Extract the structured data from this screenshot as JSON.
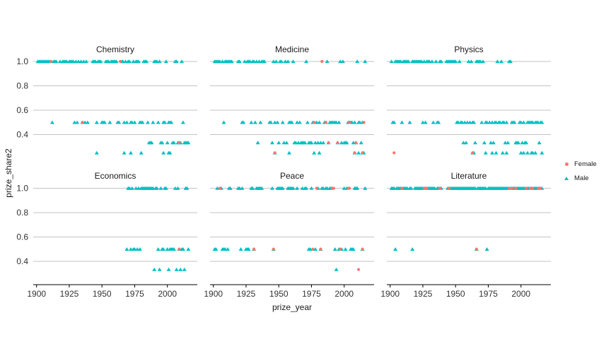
{
  "chart_data": {
    "type": "scatter",
    "faceted": true,
    "xlabel": "prize_year",
    "ylabel": "prize_share2",
    "x_ticks": [
      1900,
      1925,
      1950,
      1975,
      2000
    ],
    "x_tick_labels": [
      "1900",
      "1925",
      "1950",
      "1975",
      "2000"
    ],
    "y_ticks": [
      1.0,
      0.8,
      0.6,
      0.4
    ],
    "y_tick_labels": [
      "1.0",
      "0.8",
      "0.6",
      "0.4"
    ],
    "x_range": [
      1895,
      2022
    ],
    "share_levels": [
      1,
      0.5,
      0.333,
      0.25
    ],
    "grid": "horizontal-only",
    "legend_position": "right",
    "series": [
      {
        "name": "Female",
        "color": "#F8766D",
        "shape": "circle"
      },
      {
        "name": "Male",
        "color": "#00BFC4",
        "shape": "triangle"
      }
    ],
    "colors": {
      "gridline": "#C3C3C3",
      "axis": "#000000",
      "tick_text": "#333333"
    },
    "facets": [
      {
        "category": "Chemistry",
        "female": [
          [
            1911,
            1
          ],
          [
            1935,
            0.5
          ],
          [
            1964,
            1
          ],
          [
            2009,
            0.333
          ]
        ],
        "male": {
          "1": [
            1901,
            1902,
            1903,
            1904,
            1905,
            1906,
            1907,
            1908,
            1909,
            1910,
            1913,
            1914,
            1915,
            1918,
            1920,
            1921,
            1922,
            1923,
            1925,
            1926,
            1927,
            1928,
            1930,
            1932,
            1934,
            1936,
            1938,
            1943,
            1944,
            1945,
            1947,
            1948,
            1949,
            1953,
            1954,
            1955,
            1957,
            1958,
            1959,
            1960,
            1961,
            1965,
            1966,
            1968,
            1970,
            1971,
            1974,
            1976,
            1977,
            1978,
            1982,
            1983,
            1984,
            1990,
            1991,
            1992,
            1994,
            1999,
            2006,
            2007,
            2011
          ],
          "0.5": [
            1912,
            1929,
            1931,
            1935,
            1937,
            1939,
            1946,
            1950,
            1951,
            1952,
            1956,
            1962,
            1963,
            1967,
            1969,
            1972,
            1973,
            1975,
            1979,
            1980,
            1981,
            1985,
            1989,
            1993,
            1997,
            1998,
            2001,
            2002,
            2003,
            2012
          ],
          "0.333": [
            1986,
            1987,
            1988,
            1995,
            1996,
            2000,
            2004,
            2005,
            2008,
            2009,
            2010,
            2013,
            2014,
            2015,
            2016
          ],
          "0.25": [
            1946,
            1967,
            1972,
            1980,
            1997,
            2001,
            2002
          ]
        }
      },
      {
        "category": "Medicine",
        "female": [
          [
            1947,
            0.25
          ],
          [
            1977,
            0.5
          ],
          [
            1983,
            1
          ],
          [
            1986,
            0.5
          ],
          [
            1988,
            0.333
          ],
          [
            1995,
            0.333
          ],
          [
            2004,
            0.5
          ],
          [
            2008,
            0.25
          ],
          [
            2009,
            0.333
          ],
          [
            2014,
            0.25
          ],
          [
            2015,
            0.5
          ]
        ],
        "male": {
          "1": [
            1901,
            1902,
            1903,
            1904,
            1905,
            1907,
            1909,
            1910,
            1911,
            1912,
            1913,
            1914,
            1919,
            1920,
            1924,
            1926,
            1927,
            1928,
            1930,
            1931,
            1933,
            1935,
            1937,
            1938,
            1939,
            1946,
            1948,
            1951,
            1952,
            1955,
            1957,
            1961,
            1971,
            1987,
            1997,
            1999,
            2010,
            2016
          ],
          "0.5": [
            1908,
            1922,
            1923,
            1929,
            1932,
            1936,
            1943,
            1944,
            1947,
            1949,
            1953,
            1958,
            1959,
            1960,
            1964,
            1966,
            1972,
            1976,
            1979,
            1981,
            1985,
            1986,
            1989,
            1990,
            1991,
            1992,
            1993,
            1994,
            1996,
            2003,
            2004,
            2005,
            2006,
            2008,
            2011,
            2012,
            2014
          ],
          "0.333": [
            1934,
            1945,
            1950,
            1954,
            1956,
            1962,
            1963,
            1965,
            1967,
            1968,
            1969,
            1970,
            1973,
            1974,
            1975,
            1978,
            1980,
            1982,
            1984,
            1988,
            1995,
            1998,
            2000,
            2001,
            2002,
            2007,
            2009,
            2013
          ],
          "0.25": [
            1947,
            1958,
            1977,
            1981,
            2008,
            2011,
            2014,
            2015
          ]
        }
      },
      {
        "category": "Physics",
        "female": [
          [
            1903,
            0.25
          ],
          [
            1963,
            0.25
          ]
        ],
        "male": {
          "1": [
            1901,
            1904,
            1905,
            1906,
            1907,
            1908,
            1910,
            1911,
            1912,
            1913,
            1914,
            1917,
            1918,
            1919,
            1920,
            1921,
            1922,
            1923,
            1924,
            1926,
            1928,
            1929,
            1930,
            1932,
            1935,
            1938,
            1939,
            1943,
            1944,
            1945,
            1946,
            1947,
            1948,
            1949,
            1950,
            1953,
            1960,
            1962,
            1966,
            1967,
            1968,
            1969,
            1971,
            1982,
            1985,
            1991,
            1992
          ],
          "0.5": [
            1902,
            1903,
            1909,
            1915,
            1925,
            1927,
            1933,
            1936,
            1937,
            1951,
            1952,
            1954,
            1955,
            1957,
            1959,
            1961,
            1963,
            1964,
            1970,
            1973,
            1974,
            1976,
            1978,
            1980,
            1981,
            1983,
            1984,
            1986,
            1987,
            1989,
            1993,
            1994,
            1995,
            1999,
            2000,
            2002,
            2005,
            2006,
            2007,
            2008,
            2009,
            2011,
            2012,
            2013,
            2015,
            2016
          ],
          "0.333": [
            1956,
            1958,
            1965,
            1972,
            1977,
            1979,
            1988,
            1990,
            1996,
            1997,
            1998,
            2001,
            2003,
            2004,
            2014
          ],
          "0.25": [
            1963,
            1964,
            1973,
            1978,
            1981,
            1986,
            1989,
            2000,
            2002,
            2005,
            2008,
            2009,
            2011,
            2016
          ]
        }
      },
      {
        "category": "Economics",
        "female": [
          [
            2009,
            0.5
          ]
        ],
        "male": {
          "1": [
            1970,
            1971,
            1973,
            1976,
            1978,
            1980,
            1981,
            1982,
            1983,
            1984,
            1985,
            1986,
            1987,
            1988,
            1989,
            1991,
            1992,
            1995,
            1998,
            1999,
            2006,
            2008,
            2014,
            2015
          ],
          "0.5": [
            1969,
            1972,
            1974,
            1975,
            1977,
            1979,
            1993,
            1996,
            1997,
            2000,
            2002,
            2003,
            2004,
            2005,
            2009,
            2011,
            2012,
            2016
          ],
          "0.333": [
            1990,
            1994,
            2001,
            2007,
            2010,
            2013
          ],
          "0.25": []
        }
      },
      {
        "category": "Peace",
        "female": [
          [
            1905,
            1
          ],
          [
            1931,
            0.5
          ],
          [
            1946,
            0.5
          ],
          [
            1976,
            0.5
          ],
          [
            1979,
            1
          ],
          [
            1982,
            0.5
          ],
          [
            1991,
            1
          ],
          [
            1992,
            1
          ],
          [
            1997,
            0.5
          ],
          [
            2003,
            1
          ],
          [
            2004,
            1
          ],
          [
            2011,
            0.333
          ],
          [
            2014,
            0.5
          ]
        ],
        "male": {
          "1": [
            1903,
            1906,
            1912,
            1913,
            1919,
            1920,
            1922,
            1929,
            1930,
            1933,
            1934,
            1935,
            1936,
            1937,
            1945,
            1949,
            1950,
            1951,
            1952,
            1953,
            1957,
            1958,
            1959,
            1960,
            1961,
            1964,
            1968,
            1970,
            1971,
            1975,
            1980,
            1983,
            1984,
            1986,
            1987,
            1989,
            1990,
            2000,
            2002,
            2008,
            2009,
            2010,
            2016
          ],
          "0.5": [
            1901,
            1902,
            1907,
            1908,
            1909,
            1911,
            1921,
            1925,
            1926,
            1927,
            1931,
            1946,
            1973,
            1974,
            1978,
            1982,
            1993,
            1996,
            1998,
            2001,
            2005,
            2006,
            2007,
            2014
          ],
          "0.333": [
            1994
          ],
          "0.25": []
        }
      },
      {
        "category": "Literature",
        "female": [
          [
            1909,
            1
          ],
          [
            1926,
            1
          ],
          [
            1928,
            1
          ],
          [
            1938,
            1
          ],
          [
            1945,
            1
          ],
          [
            1966,
            0.5
          ],
          [
            1991,
            1
          ],
          [
            1993,
            1
          ],
          [
            1996,
            1
          ],
          [
            2004,
            1
          ],
          [
            2007,
            1
          ],
          [
            2009,
            1
          ],
          [
            2013,
            1
          ],
          [
            2015,
            1
          ]
        ],
        "male": {
          "1": [
            1901,
            1902,
            1903,
            1905,
            1906,
            1907,
            1908,
            1910,
            1911,
            1912,
            1913,
            1915,
            1916,
            1919,
            1920,
            1921,
            1922,
            1923,
            1924,
            1925,
            1927,
            1929,
            1930,
            1931,
            1932,
            1933,
            1934,
            1936,
            1937,
            1939,
            1944,
            1946,
            1947,
            1948,
            1949,
            1950,
            1951,
            1952,
            1953,
            1954,
            1955,
            1956,
            1957,
            1958,
            1959,
            1960,
            1961,
            1962,
            1963,
            1964,
            1965,
            1967,
            1968,
            1969,
            1970,
            1971,
            1972,
            1973,
            1975,
            1976,
            1977,
            1978,
            1979,
            1980,
            1981,
            1982,
            1983,
            1984,
            1985,
            1986,
            1987,
            1988,
            1989,
            1990,
            1992,
            1994,
            1995,
            1997,
            1998,
            1999,
            2000,
            2001,
            2002,
            2003,
            2005,
            2006,
            2008,
            2010,
            2011,
            2012,
            2014,
            2016
          ],
          "0.5": [
            1904,
            1917,
            1966,
            1974
          ],
          "0.333": [],
          "0.25": []
        }
      }
    ]
  }
}
